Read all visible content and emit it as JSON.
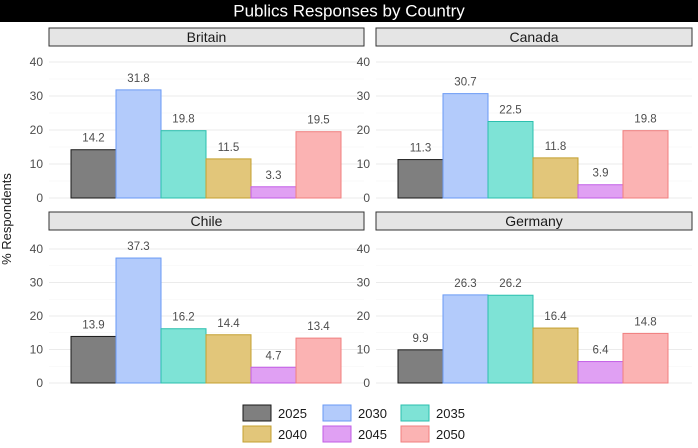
{
  "chart_data": {
    "type": "bar",
    "title": "Publics Responses by Country",
    "ylabel": "% Respondents",
    "xlabel": "",
    "ylim": [
      0,
      40
    ],
    "yticks": [
      0,
      10,
      20,
      30,
      40
    ],
    "series_names": [
      "2025",
      "2030",
      "2035",
      "2040",
      "2045",
      "2050"
    ],
    "colors": {
      "2025": "#7f7f7f",
      "2030": "#b3cbfb",
      "2035": "#7ee3d6",
      "2040": "#e2c67a",
      "2045": "#e0a0f3",
      "2050": "#fbb3b3"
    },
    "stroke_colors": {
      "2025": "#1a1a1a",
      "2030": "#6a9af5",
      "2035": "#2bbfae",
      "2040": "#c4a030",
      "2045": "#c25de6",
      "2050": "#f07f7f"
    },
    "panels": [
      {
        "country": "Britain",
        "values": [
          14.2,
          31.8,
          19.8,
          11.5,
          3.3,
          19.5
        ],
        "labels": [
          "14.2",
          "31.8",
          "19.8",
          "11.5",
          "3.3",
          "19.5"
        ]
      },
      {
        "country": "Canada",
        "values": [
          11.3,
          30.7,
          22.5,
          11.8,
          3.9,
          19.8
        ],
        "labels": [
          "11.3",
          "30.7",
          "22.5",
          "11.8",
          "3.9",
          "19.8"
        ]
      },
      {
        "country": "Chile",
        "values": [
          13.9,
          37.3,
          16.2,
          14.4,
          4.7,
          13.4
        ],
        "labels": [
          "13.9",
          "37.3",
          "16.2",
          "14.4",
          "4.7",
          "13.4"
        ]
      },
      {
        "country": "Germany",
        "values": [
          9.9,
          26.3,
          26.2,
          16.4,
          6.4,
          14.8
        ],
        "labels": [
          "9.9",
          "26.3",
          "26.2",
          "16.4",
          "6.4",
          "14.8"
        ]
      }
    ],
    "legend": [
      "2025",
      "2030",
      "2035",
      "2040",
      "2045",
      "2050"
    ]
  }
}
